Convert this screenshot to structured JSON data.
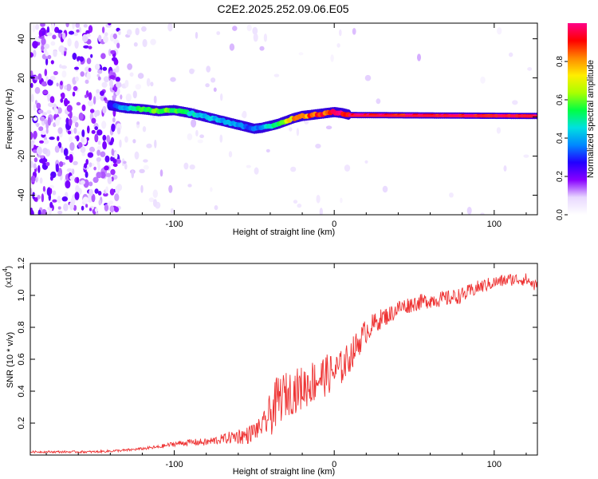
{
  "figure_title": "C2E2.2025.252.09.06.E05",
  "chart_data": [
    {
      "type": "heatmap",
      "title": "C2E2.2025.252.09.06.E05",
      "xlabel": "Height of straight line (km)",
      "ylabel": "Frequency (Hz)",
      "xlim": [
        -190,
        127
      ],
      "ylim": [
        -50,
        48
      ],
      "xticks": [
        -100,
        0,
        100
      ],
      "yticks": [
        -40,
        -20,
        0,
        20,
        40
      ],
      "colorbar": {
        "label": "Normalized spectral amplitude",
        "range": [
          0,
          1
        ],
        "ticks": [
          "0.0",
          "0.2",
          "0.4",
          "0.6",
          "0.8"
        ],
        "tick_values": [
          0.0,
          0.2,
          0.4,
          0.6,
          0.8
        ],
        "colors": [
          "#ffffff",
          "#e8d8ff",
          "#8800ff",
          "#2200ff",
          "#0088ff",
          "#00e0e0",
          "#00ff44",
          "#aaff00",
          "#ffee00",
          "#ff8800",
          "#ff0000",
          "#ff0088"
        ]
      },
      "ridge": {
        "x": [
          -140,
          -130,
          -120,
          -110,
          -100,
          -90,
          -80,
          -70,
          -60,
          -55,
          -50,
          -45,
          -40,
          -35,
          -30,
          -25,
          -20,
          -15,
          -10,
          -5,
          0,
          5,
          10,
          127
        ],
        "freq": [
          6,
          4.5,
          4,
          3,
          3.5,
          2,
          0,
          -2,
          -4,
          -5,
          -6,
          -5.5,
          -4.5,
          -3.5,
          -2,
          -0.5,
          0.5,
          1,
          1.5,
          2,
          2.5,
          2,
          1,
          0.5
        ],
        "amplitude": [
          0.25,
          0.45,
          0.55,
          0.6,
          0.6,
          0.5,
          0.45,
          0.4,
          0.4,
          0.35,
          0.35,
          0.4,
          0.5,
          0.6,
          0.7,
          0.8,
          0.85,
          0.9,
          0.92,
          0.95,
          0.98,
          1.0,
          1.0,
          1.0
        ]
      }
    },
    {
      "type": "line",
      "xlabel": "Height of straight line (km)",
      "ylabel": "SNR (10 * v/v)",
      "y_multiplier": "(x10",
      "y_exponent": "4",
      "xlim": [
        -190,
        127
      ],
      "ylim": [
        0,
        1.2
      ],
      "xticks": [
        -100,
        0,
        100
      ],
      "yticks": [
        0.2,
        0.4,
        0.6,
        0.8,
        1.0,
        1.2
      ],
      "ytick_labels": [
        "0.2",
        "0.4",
        "0.6",
        "0.8",
        "1.0",
        "1.2"
      ],
      "color": "#ee3333",
      "series": [
        {
          "name": "SNR",
          "x": [
            -190,
            -170,
            -150,
            -130,
            -110,
            -100,
            -90,
            -80,
            -70,
            -60,
            -55,
            -50,
            -45,
            -40,
            -35,
            -30,
            -25,
            -20,
            -15,
            -10,
            -5,
            0,
            5,
            10,
            15,
            20,
            25,
            30,
            35,
            40,
            50,
            60,
            70,
            80,
            90,
            100,
            110,
            120,
            127
          ],
          "values": [
            0.02,
            0.02,
            0.02,
            0.03,
            0.05,
            0.07,
            0.08,
            0.08,
            0.1,
            0.12,
            0.12,
            0.15,
            0.18,
            0.25,
            0.35,
            0.38,
            0.4,
            0.42,
            0.45,
            0.48,
            0.5,
            0.52,
            0.55,
            0.62,
            0.7,
            0.78,
            0.82,
            0.86,
            0.88,
            0.92,
            0.95,
            0.97,
            0.98,
            1.0,
            1.05,
            1.08,
            1.1,
            1.1,
            1.05
          ]
        }
      ],
      "noise": {
        "x": [
          -190,
          -120,
          -90,
          -70,
          -60,
          -50,
          -45,
          -40,
          -35,
          -30,
          -20,
          -10,
          0,
          10,
          20,
          30,
          50,
          80,
          100,
          127
        ],
        "amp": [
          0.006,
          0.008,
          0.02,
          0.03,
          0.05,
          0.06,
          0.06,
          0.14,
          0.16,
          0.14,
          0.14,
          0.14,
          0.12,
          0.1,
          0.08,
          0.06,
          0.05,
          0.05,
          0.04,
          0.04
        ]
      }
    }
  ]
}
